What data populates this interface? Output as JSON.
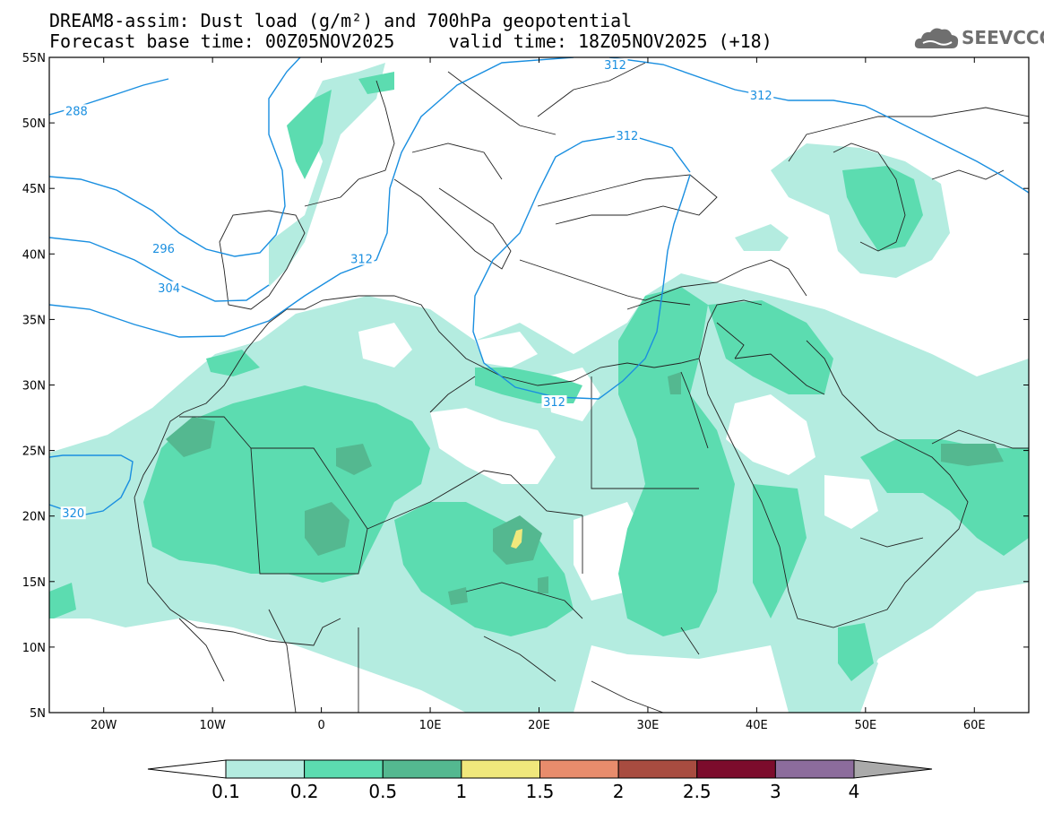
{
  "header": {
    "line1": "DREAM8-assim: Dust load (g/m²) and 700hPa geopotential",
    "line2": "Forecast base time: 00Z05NOV2025     valid time: 18Z05NOV2025 (+18)"
  },
  "logo": {
    "text": "SEEVCCC",
    "icon": "cloud-logo-icon"
  },
  "map": {
    "lon_range": [
      -25,
      65
    ],
    "lat_range": [
      5,
      55
    ],
    "lat_ticks": [
      "55N",
      "50N",
      "45N",
      "40N",
      "35N",
      "30N",
      "25N",
      "20N",
      "15N",
      "10N",
      "5N"
    ],
    "lat_values": [
      55,
      50,
      45,
      40,
      35,
      30,
      25,
      20,
      15,
      10,
      5
    ],
    "lon_ticks": [
      "20W",
      "10W",
      "0",
      "10E",
      "20E",
      "30E",
      "40E",
      "50E",
      "60E"
    ],
    "lon_values": [
      -20,
      -10,
      0,
      10,
      20,
      30,
      40,
      50,
      60
    ]
  },
  "contours": {
    "color": "#1a8fe0",
    "labels": [
      {
        "text": "288",
        "lon": -22.5,
        "lat": 50.8
      },
      {
        "text": "296",
        "lon": -14.5,
        "lat": 40.3
      },
      {
        "text": "304",
        "lon": -14.0,
        "lat": 37.3
      },
      {
        "text": "312",
        "lon": 3.7,
        "lat": 39.5
      },
      {
        "text": "312",
        "lon": 28.1,
        "lat": 48.9
      },
      {
        "text": "312",
        "lon": 40.4,
        "lat": 52.0
      },
      {
        "text": "312",
        "lon": 27.0,
        "lat": 54.3
      },
      {
        "text": "312",
        "lon": 21.4,
        "lat": 28.6
      },
      {
        "text": "320",
        "lon": -22.8,
        "lat": 20.1
      }
    ]
  },
  "colorbar": {
    "labels": [
      "0.1",
      "0.2",
      "0.5",
      "1",
      "1.5",
      "2",
      "2.5",
      "3",
      "4"
    ],
    "colors": [
      "#b4ece0",
      "#5cdcb0",
      "#54b890",
      "#f0e87c",
      "#e88c6c",
      "#a84c40",
      "#7c0c2c",
      "#8c6c9c"
    ],
    "extension_colors": {
      "under": "#ffffff",
      "over": "#aaaaaa"
    }
  },
  "dust_colors": {
    "low": "#b4ece0",
    "mid": "#5cdcb0",
    "high": "#54b890",
    "peak": "#f0e87c"
  }
}
